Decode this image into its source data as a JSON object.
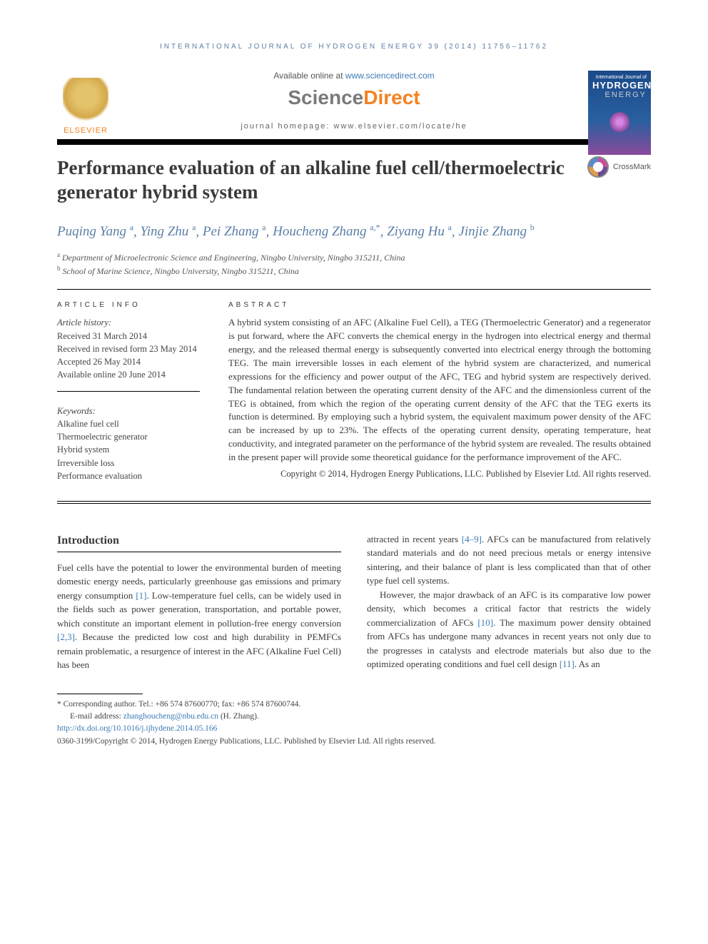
{
  "page": {
    "running_header": "INTERNATIONAL JOURNAL OF HYDROGEN ENERGY 39 (2014) 11756–11762",
    "availability_prefix": "Available online at ",
    "availability_link": "www.sciencedirect.com",
    "sciencedirect": {
      "sci": "Science",
      "direct": "Direct"
    },
    "journal_homepage": "journal homepage: www.elsevier.com/locate/he",
    "elsevier_label": "ELSEVIER",
    "journal_cover": {
      "line1": "International Journal of",
      "line2": "HYDROGEN",
      "line3": "ENERGY"
    }
  },
  "article": {
    "title": "Performance evaluation of an alkaline fuel cell/thermoelectric generator hybrid system",
    "crossmark": "CrossMark"
  },
  "authors": [
    {
      "name": "Puqing Yang",
      "aff": "a"
    },
    {
      "name": "Ying Zhu",
      "aff": "a"
    },
    {
      "name": "Pei Zhang",
      "aff": "a"
    },
    {
      "name": "Houcheng Zhang",
      "aff": "a,*"
    },
    {
      "name": "Ziyang Hu",
      "aff": "a"
    },
    {
      "name": "Jinjie Zhang",
      "aff": "b"
    }
  ],
  "affiliations": [
    {
      "sup": "a",
      "text": "Department of Microelectronic Science and Engineering, Ningbo University, Ningbo 315211, China"
    },
    {
      "sup": "b",
      "text": "School of Marine Science, Ningbo University, Ningbo 315211, China"
    }
  ],
  "article_info": {
    "heading": "ARTICLE INFO",
    "history_label": "Article history:",
    "received": "Received 31 March 2014",
    "revised": "Received in revised form 23 May 2014",
    "accepted": "Accepted 26 May 2014",
    "online": "Available online 20 June 2014",
    "keywords_label": "Keywords:",
    "keywords": [
      "Alkaline fuel cell",
      "Thermoelectric generator",
      "Hybrid system",
      "Irreversible loss",
      "Performance evaluation"
    ]
  },
  "abstract": {
    "heading": "ABSTRACT",
    "text": "A hybrid system consisting of an AFC (Alkaline Fuel Cell), a TEG (Thermoelectric Generator) and a regenerator is put forward, where the AFC converts the chemical energy in the hydrogen into electrical energy and thermal energy, and the released thermal energy is subsequently converted into electrical energy through the bottoming TEG. The main irreversible losses in each element of the hybrid system are characterized, and numerical expressions for the efficiency and power output of the AFC, TEG and hybrid system are respectively derived. The fundamental relation between the operating current density of the AFC and the dimensionless current of the TEG is obtained, from which the region of the operating current density of the AFC that the TEG exerts its function is determined. By employing such a hybrid system, the equivalent maximum power density of the AFC can be increased by up to 23%. The effects of the operating current density, operating temperature, heat conductivity, and integrated parameter on the performance of the hybrid system are revealed. The results obtained in the present paper will provide some theoretical guidance for the performance improvement of the AFC.",
    "copyright": "Copyright © 2014, Hydrogen Energy Publications, LLC. Published by Elsevier Ltd. All rights reserved."
  },
  "body": {
    "intro_head": "Introduction",
    "col1_p1a": "Fuel cells have the potential to lower the environmental burden of meeting domestic energy needs, particularly greenhouse gas emissions and primary energy consumption ",
    "ref1": "[1]",
    "col1_p1b": ". Low-temperature fuel cells, can be widely used in the fields such as power generation, transportation, and portable power, which constitute an important element in pollution-free energy conversion ",
    "ref23": "[2,3]",
    "col1_p1c": ". Because the predicted low cost and high durability in PEMFCs remain problematic, a resurgence of interest in the AFC (Alkaline Fuel Cell) has been",
    "col2_p1a": "attracted in recent years ",
    "ref49": "[4–9]",
    "col2_p1b": ". AFCs can be manufactured from relatively standard materials and do not need precious metals or energy intensive sintering, and their balance of plant is less complicated than that of other type fuel cell systems.",
    "col2_p2a": "However, the major drawback of an AFC is its comparative low power density, which becomes a critical factor that restricts the widely commercialization of AFCs ",
    "ref10": "[10]",
    "col2_p2b": ". The maximum power density obtained from AFCs has undergone many advances in recent years not only due to the progresses in catalysts and electrode materials but also due to the optimized operating conditions and fuel cell design ",
    "ref11": "[11]",
    "col2_p2c": ". As an"
  },
  "footnotes": {
    "corr": "* Corresponding author. Tel.: +86 574 87600770; fax: +86 574 87600744.",
    "email_label": "E-mail address: ",
    "email": "zhanghoucheng@nbu.edu.cn",
    "email_suffix": " (H. Zhang).",
    "doi": "http://dx.doi.org/10.1016/j.ijhydene.2014.05.166",
    "issn_line": "0360-3199/Copyright © 2014, Hydrogen Energy Publications, LLC. Published by Elsevier Ltd. All rights reserved."
  },
  "colors": {
    "link": "#3a7ab5",
    "header_blue": "#5b7fa6",
    "orange": "#f58220",
    "text": "#3a3a3a"
  }
}
